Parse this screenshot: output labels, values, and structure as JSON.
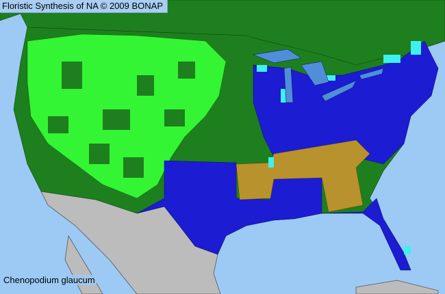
{
  "header": {
    "title": "Floristic Synthesis of NA © 2009 BONAP"
  },
  "map": {
    "species": "Chenopodium glaucum",
    "colors": {
      "ocean": "#9ccaf4",
      "canada": "#1e7f1e",
      "dark_green": "#1e7f1e",
      "light_green": "#33f533",
      "blue": "#1c1cd2",
      "cyan": "#3ef0f0",
      "mustard": "#b8922c",
      "mexico": "#bcbcbc",
      "lakes": "#4f8fd8"
    }
  }
}
